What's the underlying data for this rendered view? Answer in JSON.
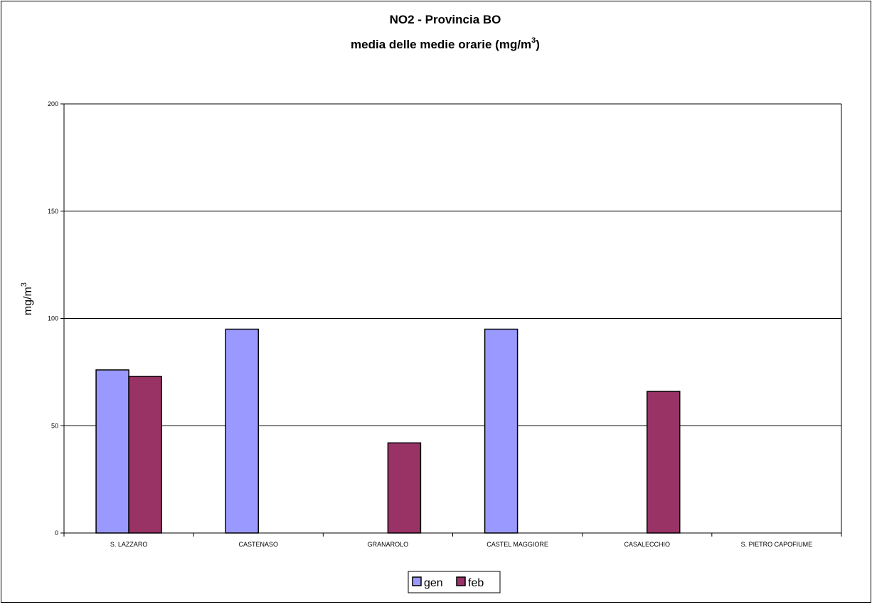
{
  "chart_data": {
    "type": "bar",
    "title": "NO2 - Provincia BO",
    "subtitle_main": "media delle medie orarie (mg/m",
    "subtitle_sup": "3",
    "subtitle_end": ")",
    "ylabel_main": "mg/m",
    "ylabel_sup": "3",
    "xlabel": "",
    "ylim": [
      0,
      200
    ],
    "yticks": [
      0,
      50,
      100,
      150,
      200
    ],
    "grid": true,
    "legend_position": "bottom-center",
    "categories": [
      "S. LAZZARO",
      "CASTENASO",
      "GRANAROLO",
      "CASTEL MAGGIORE",
      "CASALECCHIO",
      "S. PIETRO CAPOFIUME"
    ],
    "series": [
      {
        "name": "gen",
        "color": "#9999ff",
        "values": [
          76,
          95,
          null,
          95,
          null,
          null
        ]
      },
      {
        "name": "feb",
        "color": "#993366",
        "values": [
          73,
          null,
          42,
          null,
          66,
          null
        ]
      }
    ]
  }
}
